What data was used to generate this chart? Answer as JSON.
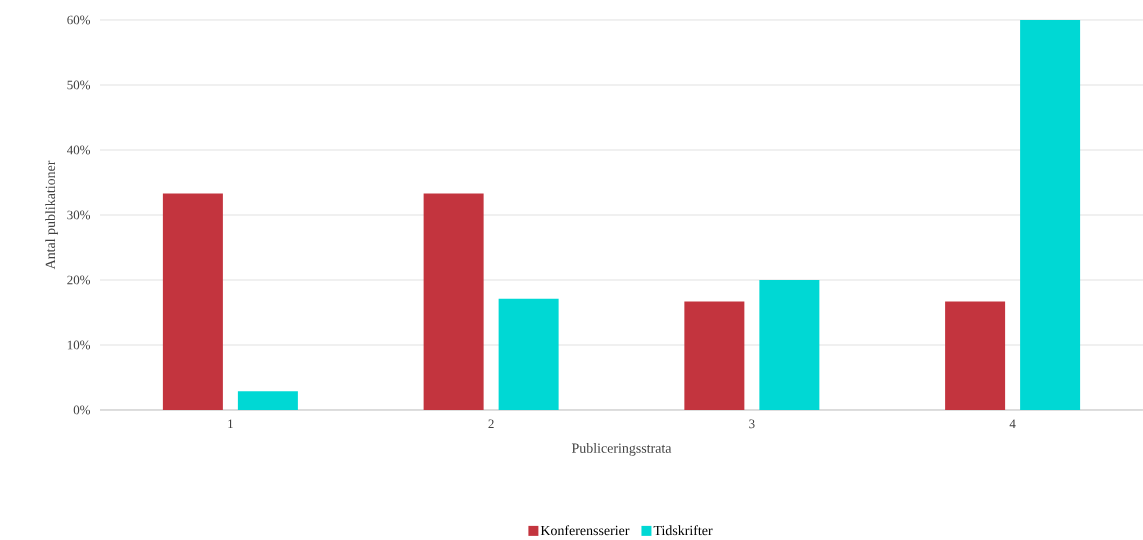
{
  "chart_data": {
    "type": "bar",
    "xlabel": "Publiceringsstrata",
    "ylabel": "Antal publikationer",
    "categories": [
      "1",
      "2",
      "3",
      "4"
    ],
    "series": [
      {
        "name": "Konferensserier",
        "color": "#c3343e",
        "values": [
          33.3,
          33.3,
          16.7,
          16.7
        ]
      },
      {
        "name": "Tidskrifter",
        "color": "#00d8d4",
        "values": [
          2.9,
          17.1,
          20,
          60
        ]
      }
    ],
    "ylim": [
      0,
      60
    ],
    "yticks": [
      {
        "value": 0,
        "label": "0%"
      },
      {
        "value": 10,
        "label": "10%"
      },
      {
        "value": 20,
        "label": "20%"
      },
      {
        "value": 30,
        "label": "30%"
      },
      {
        "value": 40,
        "label": "40%"
      },
      {
        "value": 50,
        "label": "50%"
      },
      {
        "value": 60,
        "label": "60%"
      }
    ],
    "grid": "y",
    "legend": "bottom"
  }
}
